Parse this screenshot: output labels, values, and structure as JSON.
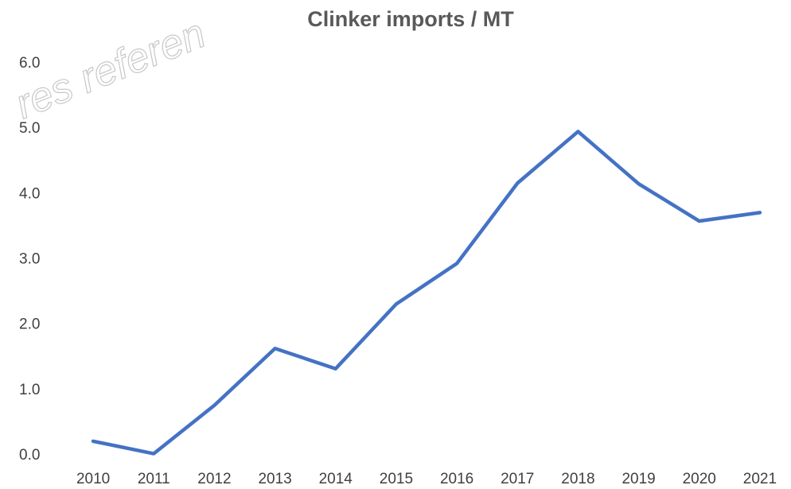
{
  "chart_data": {
    "type": "line",
    "title": "Clinker imports / MT",
    "watermark": "res referen",
    "categories": [
      "2010",
      "2011",
      "2012",
      "2013",
      "2014",
      "2015",
      "2016",
      "2017",
      "2018",
      "2019",
      "2020",
      "2021"
    ],
    "series": [
      {
        "name": "Clinker imports",
        "color": "#4472c4",
        "values": [
          0.22,
          0.03,
          0.77,
          1.64,
          1.33,
          2.32,
          2.94,
          4.17,
          4.96,
          4.16,
          3.59,
          3.72
        ]
      }
    ],
    "ylim": [
      0,
      6
    ],
    "yticks": [
      {
        "value": 0,
        "label": "0.0"
      },
      {
        "value": 1,
        "label": "1.0"
      },
      {
        "value": 2,
        "label": "2.0"
      },
      {
        "value": 3,
        "label": "3.0"
      },
      {
        "value": 4,
        "label": "4.0"
      },
      {
        "value": 5,
        "label": "5.0"
      },
      {
        "value": 6,
        "label": "6.0"
      }
    ],
    "grid": false,
    "legend": false
  }
}
